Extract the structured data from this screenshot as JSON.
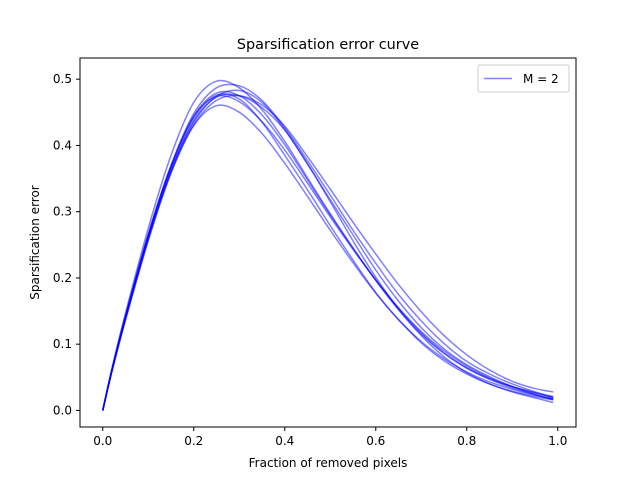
{
  "chart_data": {
    "type": "line",
    "title": "Sparsification error curve",
    "xlabel": "Fraction of removed pixels",
    "ylabel": "Sparsification error",
    "xlim": [
      -0.05,
      1.04
    ],
    "ylim": [
      -0.025,
      0.532
    ],
    "x_ticks": [
      0.0,
      0.2,
      0.4,
      0.6,
      0.8,
      1.0
    ],
    "x_tick_labels": [
      "0.0",
      "0.2",
      "0.4",
      "0.6",
      "0.8",
      "1.0"
    ],
    "y_ticks": [
      0.0,
      0.1,
      0.2,
      0.3,
      0.4,
      0.5
    ],
    "y_tick_labels": [
      "0.0",
      "0.1",
      "0.2",
      "0.3",
      "0.4",
      "0.5"
    ],
    "grid": false,
    "legend": {
      "position": "top-right",
      "entries": [
        "M = 2"
      ]
    },
    "line_color": "#0000ff",
    "line_opacity": 0.5,
    "x": [
      0.0,
      0.02,
      0.05,
      0.1,
      0.15,
      0.2,
      0.25,
      0.3,
      0.35,
      0.4,
      0.45,
      0.5,
      0.55,
      0.6,
      0.65,
      0.7,
      0.75,
      0.8,
      0.85,
      0.9,
      0.95,
      0.99
    ],
    "series": [
      {
        "values": [
          0.0,
          0.06,
          0.14,
          0.261,
          0.362,
          0.435,
          0.474,
          0.483,
          0.465,
          0.424,
          0.372,
          0.318,
          0.265,
          0.212,
          0.165,
          0.125,
          0.093,
          0.069,
          0.051,
          0.036,
          0.024,
          0.016
        ]
      },
      {
        "values": [
          0.0,
          0.061,
          0.143,
          0.266,
          0.37,
          0.448,
          0.487,
          0.49,
          0.468,
          0.427,
          0.377,
          0.325,
          0.272,
          0.222,
          0.175,
          0.135,
          0.101,
          0.074,
          0.055,
          0.04,
          0.028,
          0.019
        ]
      },
      {
        "values": [
          0.0,
          0.063,
          0.147,
          0.275,
          0.385,
          0.465,
          0.497,
          0.487,
          0.454,
          0.406,
          0.351,
          0.297,
          0.245,
          0.196,
          0.152,
          0.115,
          0.086,
          0.064,
          0.048,
          0.036,
          0.027,
          0.021
        ]
      },
      {
        "values": [
          0.0,
          0.058,
          0.136,
          0.256,
          0.358,
          0.431,
          0.468,
          0.475,
          0.461,
          0.429,
          0.383,
          0.334,
          0.284,
          0.236,
          0.19,
          0.149,
          0.113,
          0.084,
          0.061,
          0.044,
          0.033,
          0.028
        ]
      },
      {
        "values": [
          0.0,
          0.06,
          0.141,
          0.263,
          0.366,
          0.441,
          0.476,
          0.47,
          0.435,
          0.385,
          0.333,
          0.279,
          0.227,
          0.178,
          0.137,
          0.102,
          0.075,
          0.055,
          0.04,
          0.029,
          0.021,
          0.016
        ]
      },
      {
        "values": [
          0.0,
          0.06,
          0.141,
          0.264,
          0.368,
          0.444,
          0.479,
          0.475,
          0.446,
          0.401,
          0.348,
          0.295,
          0.245,
          0.197,
          0.154,
          0.117,
          0.087,
          0.064,
          0.047,
          0.034,
          0.024,
          0.017
        ]
      },
      {
        "values": [
          0.0,
          0.059,
          0.138,
          0.258,
          0.359,
          0.43,
          0.46,
          0.45,
          0.418,
          0.373,
          0.323,
          0.272,
          0.223,
          0.177,
          0.137,
          0.104,
          0.078,
          0.058,
          0.043,
          0.032,
          0.023,
          0.018
        ]
      },
      {
        "values": [
          0.0,
          0.06,
          0.139,
          0.26,
          0.362,
          0.437,
          0.473,
          0.475,
          0.457,
          0.423,
          0.372,
          0.315,
          0.256,
          0.201,
          0.153,
          0.113,
          0.081,
          0.057,
          0.04,
          0.028,
          0.019,
          0.012
        ]
      },
      {
        "values": [
          0.0,
          0.061,
          0.142,
          0.265,
          0.369,
          0.444,
          0.474,
          0.466,
          0.436,
          0.393,
          0.343,
          0.292,
          0.243,
          0.197,
          0.155,
          0.119,
          0.09,
          0.067,
          0.049,
          0.036,
          0.026,
          0.02
        ]
      }
    ]
  }
}
